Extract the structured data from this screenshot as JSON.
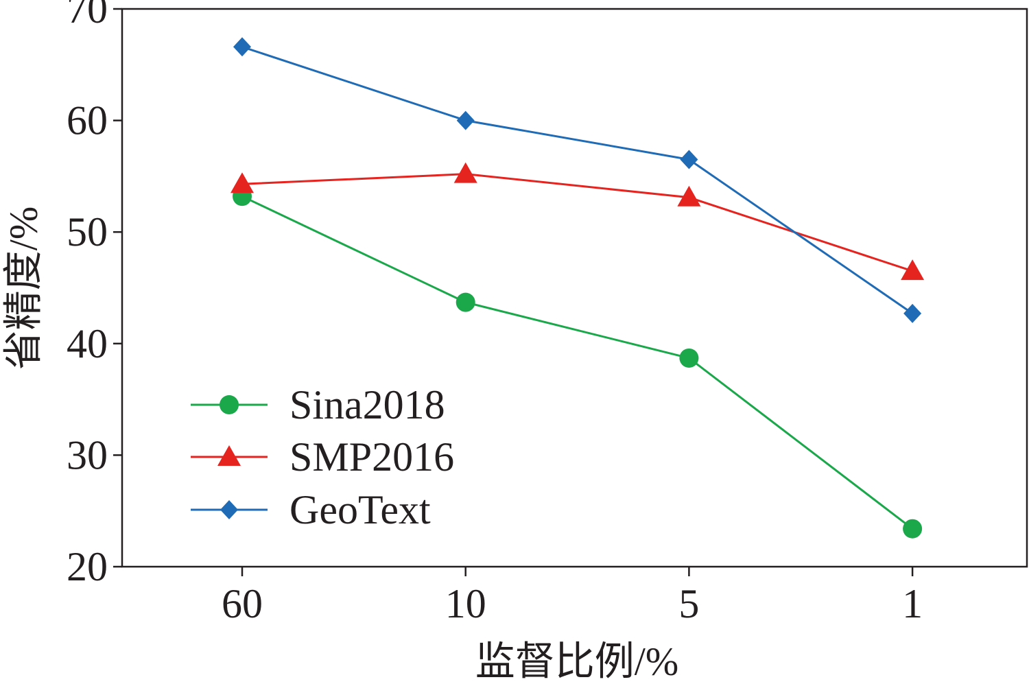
{
  "chart_data": {
    "type": "line",
    "xlabel": "监督比例/%",
    "ylabel": "省精度/%",
    "categories": [
      "60",
      "10",
      "5",
      "1"
    ],
    "ylim": [
      20,
      70
    ],
    "yticks": [
      70,
      60,
      50,
      40,
      30,
      20
    ],
    "grid": false,
    "legend": "lower-left",
    "series": [
      {
        "name": "Sina2018",
        "color": "#1ba84b",
        "values": [
          53.2,
          43.7,
          38.7,
          23.4
        ]
      },
      {
        "name": "SMP2016",
        "color": "#e5231f",
        "values": [
          54.3,
          55.2,
          53.1,
          46.5
        ]
      },
      {
        "name": "GeoText",
        "color": "#1f6bb5",
        "values": [
          66.6,
          60.0,
          56.5,
          42.7
        ]
      }
    ]
  }
}
